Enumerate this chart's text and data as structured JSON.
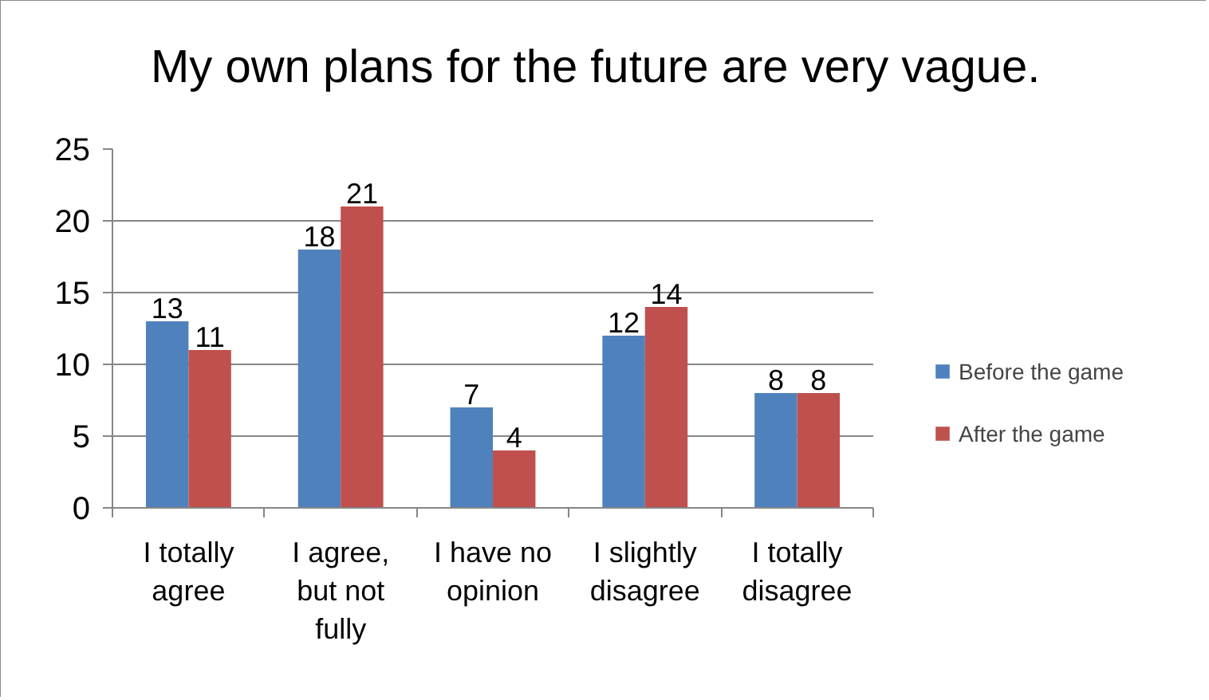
{
  "chart_data": {
    "type": "bar",
    "title": "My own plans for the future are very vague.",
    "categories": [
      "I totally agree",
      "I agree, but not fully",
      "I have no opinion",
      "I slightly disagree",
      "I totally disagree"
    ],
    "series": [
      {
        "name": "Before the game",
        "color": "#4f81bd",
        "values": [
          13,
          18,
          7,
          12,
          8
        ]
      },
      {
        "name": "After the game",
        "color": "#c0504d",
        "values": [
          11,
          21,
          4,
          14,
          8
        ]
      }
    ],
    "ylim": [
      0,
      25
    ],
    "yticks": [
      0,
      5,
      10,
      15,
      20,
      25
    ],
    "grid": "y",
    "legend": "right",
    "data_labels": true
  }
}
